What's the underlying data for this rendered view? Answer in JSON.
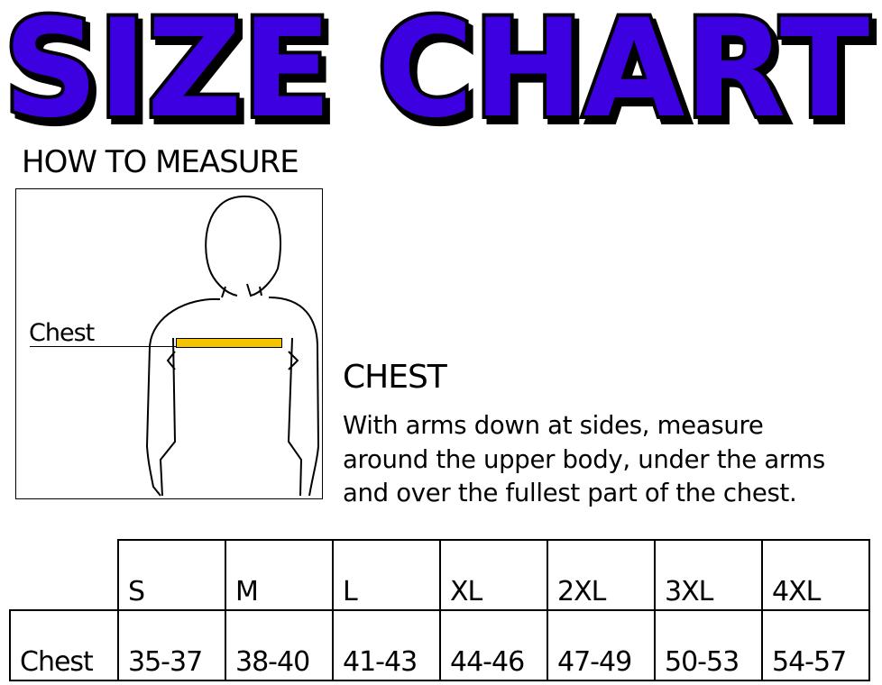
{
  "title": "SIZE CHART",
  "title_color": "#3d00e0",
  "how_to_measure": "HOW TO MEASURE",
  "figure": {
    "chest_label": "Chest",
    "tape_color": "#f5c400"
  },
  "chest_heading": "CHEST",
  "chest_description": [
    "With arms down at sides, measure",
    "around the upper body, under the arms",
    "and over the fullest part of the chest."
  ],
  "table": {
    "sizes": [
      "S",
      "M",
      "L",
      "XL",
      "2XL",
      "3XL",
      "4XL"
    ],
    "row_label": "Chest",
    "values": [
      "35-37",
      "38-40",
      "41-43",
      "44-46",
      "47-49",
      "50-53",
      "54-57"
    ]
  }
}
